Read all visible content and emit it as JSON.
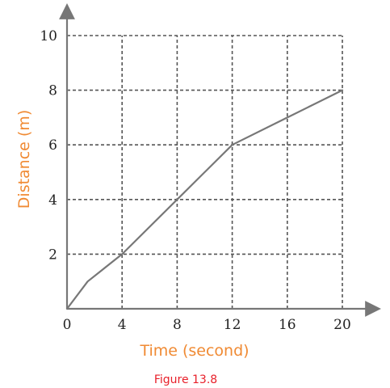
{
  "chart_data": {
    "type": "line",
    "x": [
      0,
      1.5,
      4,
      8,
      12,
      16,
      20
    ],
    "series": [
      {
        "values": [
          0,
          1,
          2,
          4,
          6,
          7,
          8
        ]
      }
    ],
    "xlabel": "Time (second)",
    "ylabel": "Distance (m)",
    "xlim": [
      0,
      20
    ],
    "ylim": [
      0,
      10
    ],
    "xticks": [
      "0",
      "4",
      "8",
      "12",
      "16",
      "20"
    ],
    "yticks": [
      "2",
      "4",
      "6",
      "8",
      "10"
    ],
    "grid": true,
    "caption": "Figure 13.8"
  },
  "colors": {
    "line": "#777777",
    "grid": "#555555",
    "axis": "#777777",
    "axis_title": "#f08a33",
    "caption": "#e8202a"
  }
}
